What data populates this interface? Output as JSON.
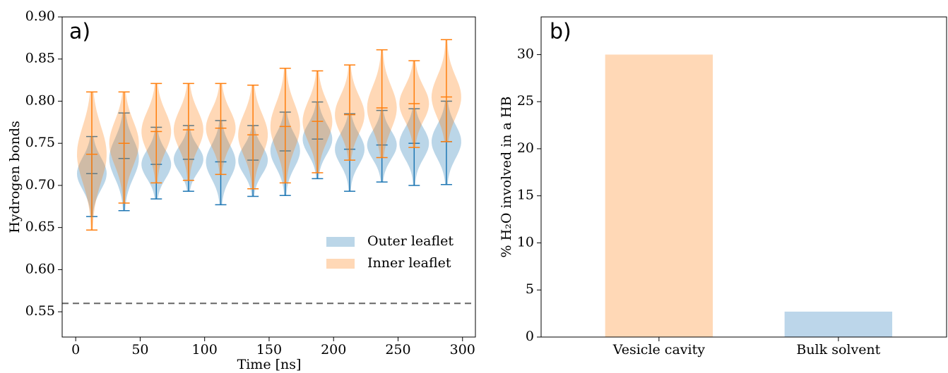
{
  "chart_data": [
    {
      "type": "violin",
      "annotation": "a)",
      "xlabel": "Time [ns]",
      "ylabel": "Hydrogen bonds",
      "x": [
        12.5,
        37.5,
        62.5,
        87.5,
        112.5,
        137.5,
        162.5,
        187.5,
        212.5,
        237.5,
        262.5,
        287.5
      ],
      "series": [
        {
          "name": "Outer leaflet",
          "color": "#1f77b4",
          "max": [
            0.758,
            0.786,
            0.769,
            0.771,
            0.777,
            0.771,
            0.787,
            0.799,
            0.785,
            0.789,
            0.791,
            0.8
          ],
          "median": [
            0.714,
            0.732,
            0.725,
            0.731,
            0.728,
            0.73,
            0.741,
            0.755,
            0.743,
            0.748,
            0.75,
            0.752
          ],
          "min": [
            0.663,
            0.67,
            0.684,
            0.693,
            0.677,
            0.687,
            0.688,
            0.708,
            0.693,
            0.704,
            0.7,
            0.701
          ]
        },
        {
          "name": "Inner leaflet",
          "color": "#ff7f0e",
          "max": [
            0.811,
            0.811,
            0.821,
            0.821,
            0.821,
            0.819,
            0.839,
            0.836,
            0.843,
            0.861,
            0.848,
            0.873
          ],
          "median": [
            0.737,
            0.75,
            0.764,
            0.766,
            0.768,
            0.76,
            0.77,
            0.776,
            0.784,
            0.792,
            0.797,
            0.805
          ],
          "min": [
            0.647,
            0.679,
            0.703,
            0.706,
            0.713,
            0.696,
            0.703,
            0.715,
            0.73,
            0.733,
            0.745,
            0.752
          ]
        }
      ],
      "reference_line": 0.56,
      "xlim": [
        -10.5,
        310
      ],
      "ylim": [
        0.52,
        0.9
      ],
      "xticks": [
        0,
        50,
        100,
        150,
        200,
        250,
        300
      ],
      "yticks": [
        0.55,
        {
          "value": 0.6,
          "label": "0.60"
        },
        0.65,
        {
          "value": 0.7,
          "label": "0.70"
        },
        0.75,
        {
          "value": 0.8,
          "label": "0.80"
        },
        0.85,
        {
          "value": 0.9,
          "label": "0.90"
        }
      ],
      "legend": "lower right"
    },
    {
      "type": "bar",
      "annotation": "b)",
      "ylabel": "% H₂O involved in a HB",
      "categories": [
        "Vesicle cavity",
        "Bulk solvent"
      ],
      "values": [
        30,
        2.7
      ],
      "colors": [
        "#ffd8b6",
        "#bcd6ea"
      ],
      "ylim": [
        0,
        34
      ],
      "yticks": [
        0,
        5,
        10,
        15,
        20,
        25,
        30
      ]
    }
  ]
}
